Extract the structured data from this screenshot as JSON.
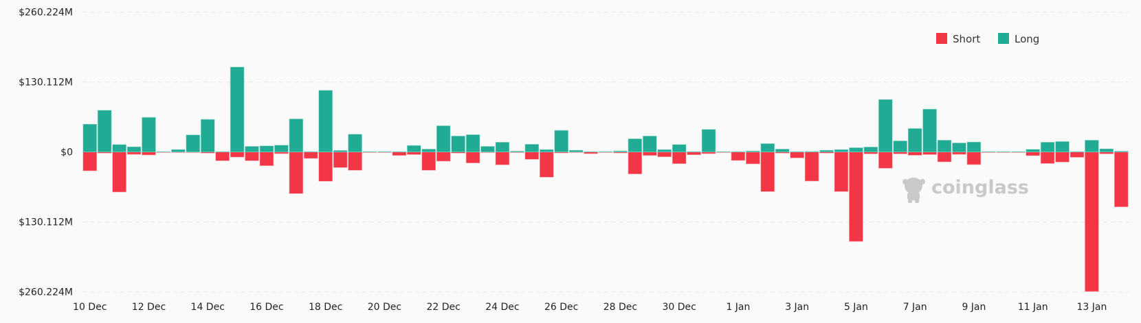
{
  "chart_data": {
    "type": "bar",
    "stacked_diverging": true,
    "title": "",
    "xlabel": "",
    "ylabel": "",
    "ylim": [
      -260.224,
      260.224
    ],
    "y_unit": "$M",
    "y_ticks": [
      260.224,
      130.112,
      0,
      -130.112,
      -260.224
    ],
    "y_tick_labels": [
      "$260.224M",
      "$130.112M",
      "$0",
      "$130.112M",
      "$260.224M"
    ],
    "x_tick_labels": [
      "10 Dec",
      "12 Dec",
      "14 Dec",
      "16 Dec",
      "18 Dec",
      "20 Dec",
      "22 Dec",
      "24 Dec",
      "26 Dec",
      "28 Dec",
      "30 Dec",
      "1 Jan",
      "3 Jan",
      "5 Jan",
      "7 Jan",
      "9 Jan",
      "11 Jan",
      "13 Jan"
    ],
    "bar_interval": "12h",
    "grid": true,
    "legend_position": "top-right",
    "series": [
      {
        "name": "Short",
        "color": "#f23645",
        "direction": "down",
        "values": [
          34.9,
          2,
          74.4,
          4.3,
          5.5,
          1,
          0.5,
          0.5,
          2,
          16.2,
          9.4,
          16.2,
          25.5,
          3,
          77.3,
          11.9,
          54.4,
          28.9,
          34,
          1,
          0,
          6.4,
          4.7,
          34,
          17,
          2,
          20.4,
          1,
          23.8,
          0.5,
          13.6,
          46.8,
          1.7,
          0.5,
          3,
          0.5,
          1.7,
          40.8,
          6.4,
          8.9,
          21.7,
          5.1,
          3,
          0.5,
          15.7,
          22.1,
          73.6,
          2,
          11,
          54,
          2,
          73.6,
          166.3,
          3.4,
          30.2,
          3.4,
          6,
          4.7,
          18.3,
          4.3,
          23.4,
          0.5,
          0,
          0.5,
          6.8,
          21.3,
          18.7,
          9.8,
          259.4,
          3.4,
          102
        ]
      },
      {
        "name": "Long",
        "color": "#22ab94",
        "direction": "up",
        "values": [
          51.9,
          77.8,
          14,
          9.8,
          64.6,
          0,
          4.7,
          31.9,
          60.8,
          0,
          158.2,
          10.6,
          11.5,
          12.8,
          61.7,
          0,
          114.8,
          3,
          33.2,
          0,
          1,
          0.5,
          12.3,
          5.5,
          48.9,
          29.8,
          32.3,
          10.6,
          18.3,
          1.7,
          14.5,
          4.7,
          40.4,
          3.4,
          0,
          0.5,
          2.1,
          24.7,
          29.8,
          4.7,
          14,
          0,
          42.1,
          1,
          0,
          2.1,
          15.7,
          5.5,
          0,
          1.3,
          3.4,
          4.7,
          8.1,
          9.4,
          97.8,
          20.8,
          43.8,
          79.9,
          22.1,
          17,
          18.7,
          0.5,
          1,
          0,
          5.1,
          18.3,
          19.6,
          0,
          22.1,
          6,
          1.7
        ]
      }
    ]
  },
  "watermark": "coinglass"
}
